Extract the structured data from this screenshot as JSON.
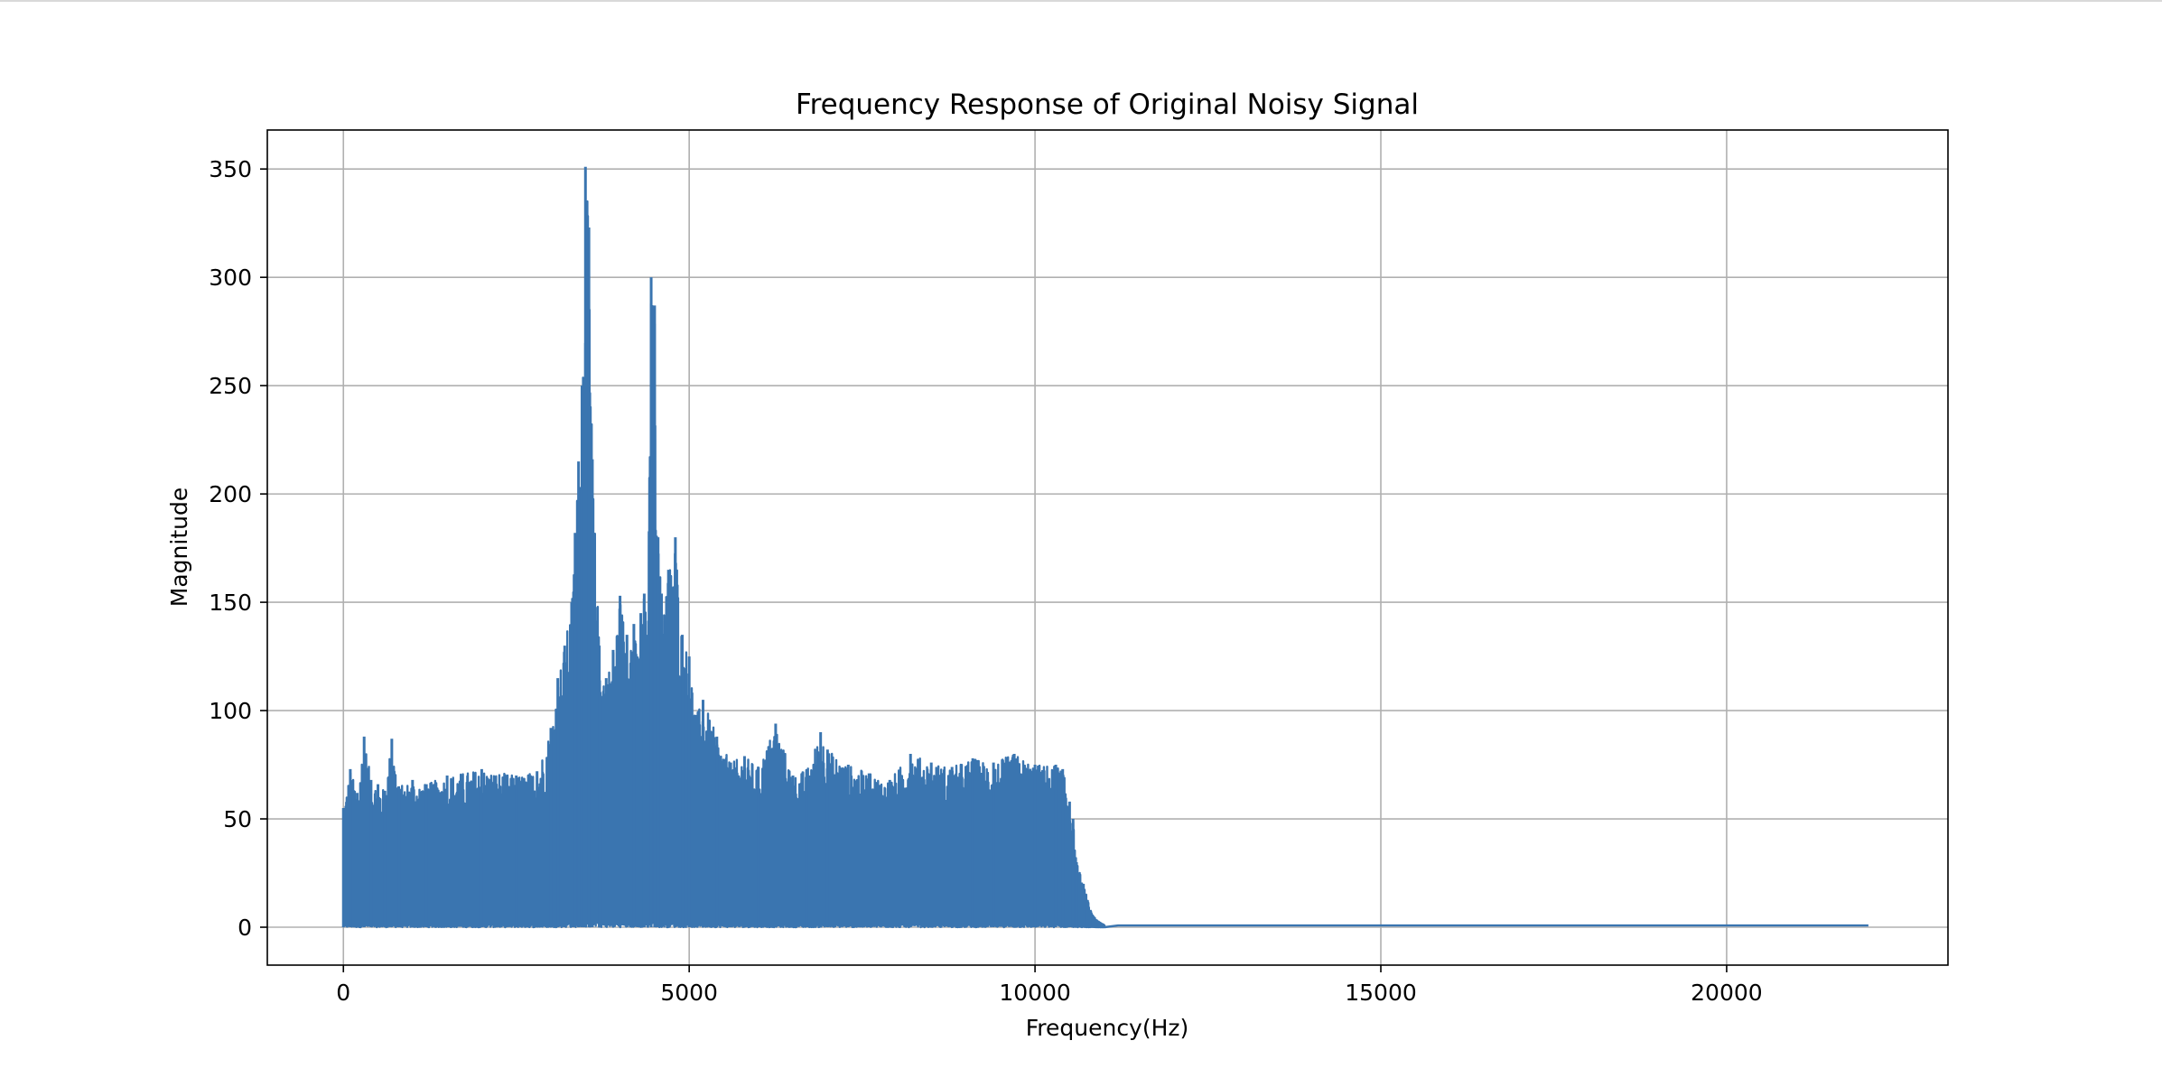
{
  "chart_data": {
    "type": "line",
    "title": "Frequency Response of Original Noisy Signal",
    "xlabel": "Frequency(Hz)",
    "ylabel": "Magnitude",
    "xlim": [
      -1100,
      23200
    ],
    "ylim": [
      -17.5,
      368
    ],
    "xticks": [
      0,
      5000,
      10000,
      15000,
      20000
    ],
    "yticks": [
      0,
      50,
      100,
      150,
      200,
      250,
      300,
      350
    ],
    "grid": true,
    "legend": "none",
    "series": [
      {
        "color": "#3a75b0",
        "freq_max": 22050,
        "envelope": {
          "x": [
            0,
            100,
            200,
            300,
            400,
            500,
            600,
            700,
            800,
            1000,
            1200,
            1500,
            2000,
            2500,
            2800,
            3000,
            3100,
            3200,
            3300,
            3350,
            3400,
            3450,
            3500,
            3550,
            3600,
            3700,
            3800,
            3900,
            4000,
            4100,
            4200,
            4250,
            4300,
            4350,
            4400,
            4450,
            4500,
            4550,
            4600,
            4700,
            4800,
            4900,
            5000,
            5100,
            5200,
            5400,
            5600,
            5800,
            6000,
            6250,
            6500,
            6700,
            6900,
            7000,
            7300,
            7600,
            7900,
            8200,
            8500,
            8800,
            9100,
            9400,
            9700,
            10000,
            10300,
            10400,
            10500,
            10550,
            10600,
            10700,
            10800,
            10900,
            11000
          ],
          "y": [
            55,
            73,
            62,
            88,
            68,
            66,
            63,
            87,
            65,
            68,
            66,
            70,
            73,
            70,
            72,
            92,
            115,
            130,
            150,
            182,
            215,
            250,
            351,
            323,
            216,
            130,
            115,
            128,
            153,
            135,
            140,
            125,
            145,
            154,
            135,
            300,
            287,
            180,
            154,
            165,
            180,
            135,
            125,
            98,
            105,
            88,
            76,
            79,
            74,
            94,
            70,
            73,
            90,
            82,
            75,
            71,
            68,
            80,
            76,
            74,
            78,
            76,
            80,
            75,
            75,
            73,
            58,
            50,
            30,
            20,
            8,
            3,
            1.2
          ]
        },
        "tail_level": 1.0
      }
    ]
  }
}
